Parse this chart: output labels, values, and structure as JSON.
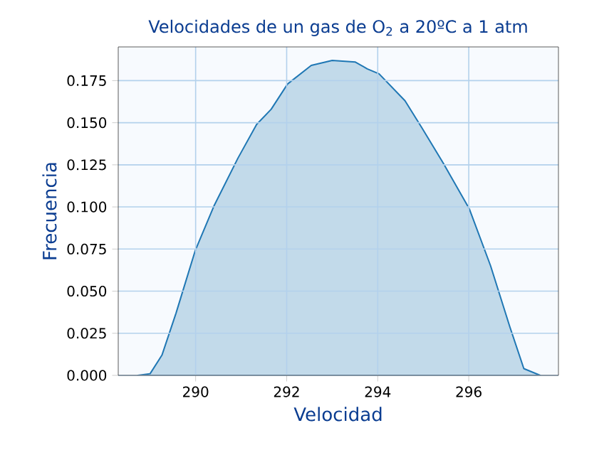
{
  "chart_data": {
    "type": "area",
    "title": "Velocidades de un gas de O$_{2}$ a 20ºC a 1 atm",
    "xlabel": "Velocidad",
    "ylabel": "Frecuencia",
    "xlim": [
      288.3,
      297.97
    ],
    "ylim": [
      0,
      0.195
    ],
    "xticks": [
      290,
      292,
      294,
      296
    ],
    "yticks": [
      {
        "value": 0,
        "label": "0.000"
      },
      0.025,
      {
        "value": 0.05,
        "label": "0.050"
      },
      0.075,
      {
        "value": 0.1,
        "label": "0.100"
      },
      0.125,
      {
        "value": 0.15,
        "label": "0.150"
      },
      0.175
    ],
    "grid": true,
    "series": [
      {
        "color": "#1f77b4",
        "x": [
          288.73,
          289.0,
          289.26,
          289.57,
          289.99,
          290.41,
          290.93,
          291.34,
          291.66,
          292.02,
          292.54,
          293.0,
          293.51,
          293.77,
          294.03,
          294.6,
          294.97,
          295.44,
          296.01,
          296.48,
          296.9,
          297.21,
          297.57
        ],
        "values": [
          0,
          0.001,
          0.012,
          0.037,
          0.074,
          0.101,
          0.129,
          0.149,
          0.158,
          0.173,
          0.184,
          0.187,
          0.186,
          0.182,
          0.179,
          0.163,
          0.147,
          0.126,
          0.099,
          0.065,
          0.029,
          0.004,
          0
        ]
      }
    ]
  }
}
